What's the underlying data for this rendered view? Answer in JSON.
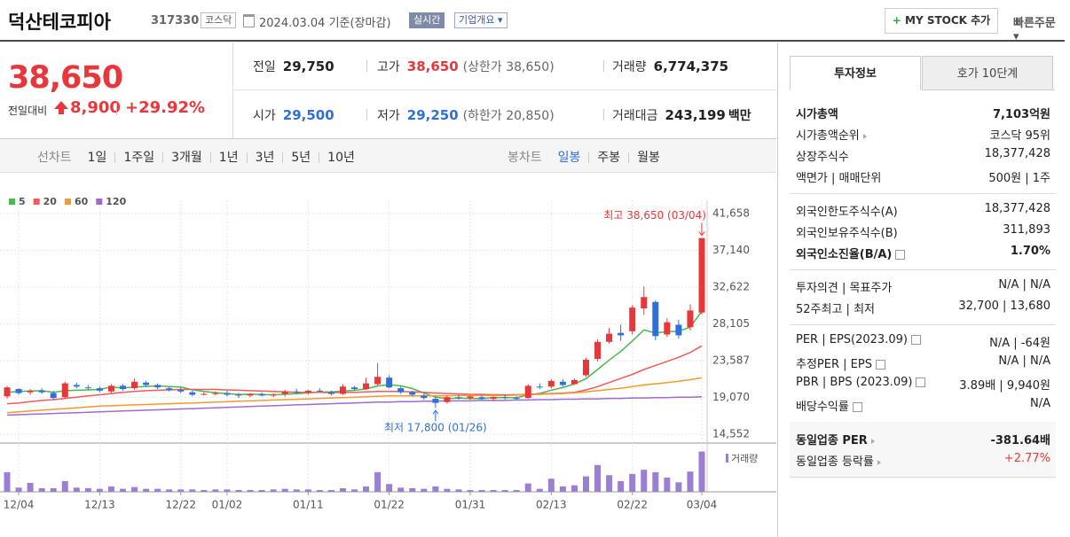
{
  "header": {
    "title": "덕산테코피아",
    "code": "317330",
    "market": "코스닥",
    "date": "2024.03.04",
    "basis": "기준(장마감)",
    "realtime": "실시간",
    "overview": "기업개요",
    "mystock": "MY STOCK 추가",
    "quick_order": "빠른주문"
  },
  "price": {
    "current": "38,650",
    "change_label": "전일대비",
    "change": "8,900",
    "change_rate": "+29.92%"
  },
  "summary": {
    "rows": [
      [
        {
          "label": "전일",
          "value": "29,750"
        },
        {
          "label": "고가",
          "value": "38,650",
          "note": "(상한가 38,650)"
        },
        {
          "label": "거래량",
          "value": "6,774,375"
        }
      ],
      [
        {
          "label": "시가",
          "value": "29,500"
        },
        {
          "label": "저가",
          "value": "29,250",
          "note": "(하한가 20,850)"
        },
        {
          "label": "거래대금",
          "value": "243,199",
          "unit": "백만"
        }
      ]
    ]
  },
  "tabs": {
    "line_label": "선차트",
    "line": [
      "1일",
      "1주일",
      "3개월",
      "1년",
      "3년",
      "5년",
      "10년"
    ],
    "candle_label": "봉차트",
    "candle": [
      "일봉",
      "주봉",
      "월봉"
    ]
  },
  "chart_data": {
    "type": "candlestick",
    "x": [
      null,
      "12/04",
      null,
      null,
      null,
      null,
      null,
      null,
      "12/13",
      null,
      null,
      null,
      null,
      null,
      null,
      "12/22",
      null,
      null,
      null,
      "01/02",
      null,
      null,
      null,
      null,
      null,
      null,
      "01/11",
      null,
      null,
      null,
      null,
      null,
      null,
      "01/22",
      null,
      null,
      null,
      null,
      null,
      null,
      "01/31",
      null,
      null,
      null,
      null,
      null,
      null,
      "02/13",
      null,
      null,
      null,
      null,
      null,
      null,
      "02/22",
      null,
      null,
      null,
      null,
      null,
      "03/04"
    ],
    "open": [
      19200,
      20100,
      19700,
      19900,
      19600,
      19100,
      20600,
      20300,
      20200,
      19800,
      20500,
      20200,
      20900,
      20600,
      20200,
      20000,
      19700,
      19400,
      19500,
      19600,
      19400,
      19300,
      19500,
      19300,
      19500,
      19800,
      19700,
      19900,
      19700,
      19500,
      20300,
      20100,
      20700,
      21500,
      20200,
      19700,
      19300,
      18900,
      18500,
      19100,
      19000,
      19100,
      18900,
      19100,
      19000,
      19000,
      20400,
      20400,
      21000,
      20700,
      21800,
      23800,
      25900,
      27000,
      27200,
      30000,
      30800,
      26800,
      28000,
      27700,
      29500
    ],
    "high": [
      20500,
      20200,
      20100,
      20200,
      19900,
      21000,
      20900,
      20600,
      20400,
      20700,
      20700,
      21400,
      21100,
      20800,
      20400,
      20300,
      19900,
      19700,
      19800,
      19900,
      19600,
      19600,
      19700,
      19600,
      20000,
      20100,
      20000,
      20200,
      19900,
      20700,
      20500,
      21500,
      23300,
      21800,
      20500,
      19900,
      19500,
      19200,
      19300,
      19400,
      19300,
      19300,
      19200,
      19400,
      19200,
      20700,
      20800,
      21300,
      21300,
      21400,
      23900,
      26200,
      27600,
      28000,
      30400,
      32700,
      31000,
      28800,
      28600,
      30500,
      38650
    ],
    "low": [
      18900,
      19400,
      19400,
      19500,
      18800,
      19000,
      20200,
      20000,
      19700,
      19600,
      19900,
      20000,
      20400,
      20100,
      19800,
      19600,
      19200,
      19300,
      19300,
      19200,
      19000,
      19100,
      19200,
      19100,
      19200,
      19500,
      19400,
      19700,
      19300,
      19400,
      19900,
      20000,
      20500,
      20200,
      19500,
      19200,
      18800,
      17800,
      18300,
      18800,
      18800,
      18700,
      18600,
      18800,
      18700,
      18900,
      20100,
      20200,
      20400,
      20600,
      21600,
      23500,
      25700,
      26000,
      26800,
      29200,
      26100,
      26500,
      26300,
      27300,
      29250
    ],
    "close": [
      20300,
      19600,
      19900,
      19700,
      19000,
      20800,
      20400,
      20200,
      19900,
      20500,
      20100,
      21000,
      20600,
      20300,
      20000,
      19800,
      19400,
      19500,
      19600,
      19400,
      19300,
      19500,
      19300,
      19400,
      19800,
      19700,
      19900,
      19800,
      19500,
      20400,
      20100,
      20800,
      21600,
      20300,
      19700,
      19400,
      19000,
      18400,
      19100,
      19000,
      19200,
      18900,
      19100,
      19000,
      18900,
      20500,
      20300,
      21100,
      20600,
      21200,
      23700,
      25900,
      26900,
      26700,
      30100,
      31400,
      26600,
      28300,
      26700,
      29750,
      38650
    ],
    "volume": [
      3300000,
      700000,
      1500000,
      600000,
      600000,
      1800000,
      700000,
      600000,
      500000,
      900000,
      500000,
      800000,
      500000,
      500000,
      400000,
      400000,
      400000,
      300000,
      400000,
      400000,
      300000,
      300000,
      300000,
      400000,
      500000,
      400000,
      400000,
      300000,
      300000,
      600000,
      400000,
      900000,
      3300000,
      1300000,
      700000,
      600000,
      500000,
      900000,
      500000,
      400000,
      300000,
      300000,
      300000,
      300000,
      300000,
      1400000,
      500000,
      2200000,
      900000,
      1100000,
      2600000,
      4500000,
      2800000,
      1800000,
      3000000,
      3700000,
      3300000,
      2400000,
      1600000,
      3400000,
      6774375
    ],
    "ma": [
      {
        "name": "5",
        "color": "#4cb84c",
        "values": [
          19700,
          19800,
          19850,
          19900,
          19700,
          19900,
          19950,
          20000,
          20050,
          20350,
          20220,
          20340,
          20420,
          20500,
          20400,
          20340,
          20020,
          19800,
          19660,
          19540,
          19440,
          19460,
          19420,
          19380,
          19460,
          19540,
          19620,
          19720,
          19740,
          19860,
          19940,
          20120,
          20480,
          20640,
          20500,
          20160,
          19600,
          19100,
          18920,
          18980,
          18940,
          18920,
          19060,
          19040,
          19040,
          19380,
          19560,
          19960,
          20280,
          20740,
          21380,
          22500,
          23660,
          24720,
          26000,
          27360,
          27000,
          27160,
          27200,
          27710,
          29650
        ]
      },
      {
        "name": "20",
        "color": "#f05a5a",
        "values": [
          18300,
          18400,
          18550,
          18700,
          18800,
          18950,
          19100,
          19250,
          19400,
          19550,
          19700,
          19800,
          19900,
          19950,
          20000,
          20050,
          20050,
          20050,
          20050,
          20000,
          19950,
          19900,
          19850,
          19800,
          19750,
          19700,
          19700,
          19700,
          19650,
          19700,
          19700,
          19750,
          19800,
          19800,
          19800,
          19750,
          19700,
          19600,
          19550,
          19500,
          19450,
          19450,
          19400,
          19400,
          19400,
          19450,
          19500,
          19550,
          19600,
          19700,
          20000,
          20400,
          20900,
          21400,
          21900,
          22500,
          23000,
          23500,
          24000,
          24600,
          25400
        ]
      },
      {
        "name": "60",
        "color": "#f39a2e",
        "values": [
          17200,
          17300,
          17400,
          17500,
          17600,
          17700,
          17800,
          17900,
          18000,
          18050,
          18100,
          18150,
          18200,
          18250,
          18300,
          18350,
          18400,
          18450,
          18500,
          18550,
          18600,
          18650,
          18700,
          18750,
          18800,
          18850,
          18900,
          18950,
          19000,
          19050,
          19100,
          19150,
          19200,
          19250,
          19250,
          19250,
          19250,
          19250,
          19250,
          19300,
          19300,
          19300,
          19300,
          19300,
          19350,
          19400,
          19450,
          19500,
          19550,
          19650,
          19750,
          19900,
          20050,
          20200,
          20400,
          20600,
          20750,
          20900,
          21050,
          21250,
          21500
        ]
      },
      {
        "name": "120",
        "color": "#a06bd0",
        "values": [
          16900,
          16950,
          17000,
          17050,
          17100,
          17150,
          17200,
          17250,
          17300,
          17350,
          17400,
          17450,
          17500,
          17550,
          17600,
          17650,
          17700,
          17750,
          17800,
          17850,
          17900,
          17950,
          18000,
          18050,
          18100,
          18150,
          18200,
          18250,
          18300,
          18350,
          18400,
          18450,
          18500,
          18500,
          18550,
          18550,
          18600,
          18600,
          18650,
          18650,
          18650,
          18700,
          18700,
          18700,
          18750,
          18750,
          18800,
          18800,
          18850,
          18850,
          18900,
          18900,
          18950,
          18950,
          19000,
          19000,
          19050,
          19050,
          19100,
          19100,
          19150
        ]
      }
    ],
    "up_color": "#e8373a",
    "down_color": "#2f6fdc",
    "volume_color": "#9b7fd2",
    "ylim": [
      14552,
      41658
    ],
    "yticks": [
      {
        "value": 41658,
        "label": "41,658"
      },
      {
        "value": 37140,
        "label": "37,140"
      },
      {
        "value": 32622,
        "label": "32,622"
      },
      {
        "value": 28105,
        "label": "28,105"
      },
      {
        "value": 23587,
        "label": "23,587"
      },
      {
        "value": 19070,
        "label": "19,070"
      },
      {
        "value": 14552,
        "label": "14,552"
      }
    ],
    "volume_ylim": [
      0,
      7000000
    ],
    "high_label": "최고 38,650 (03/04)",
    "low_label": "최저 17,800 (01/26)",
    "volume_label": "거래량"
  },
  "invest": {
    "tabs": [
      "투자정보",
      "호가 10단계"
    ],
    "groups": [
      [
        {
          "label": "시가총액",
          "value": "7,103억원"
        },
        {
          "label": "시가총액순위",
          "value": "코스닥 95위"
        },
        {
          "label": "상장주식수",
          "value": "18,377,428"
        },
        {
          "label": "액면가 | 매매단위",
          "value": "500원 | 1주"
        }
      ],
      [
        {
          "label": "외국인한도주식수(A)",
          "value": "18,377,428"
        },
        {
          "label": "외국인보유주식수(B)",
          "value": "311,893"
        },
        {
          "label": "외국인소진율(B/A)",
          "value": "1.70%"
        }
      ],
      [
        {
          "label": "투자의견 | 목표주가",
          "value": "N/A | N/A"
        },
        {
          "label": "52주최고 | 최저",
          "value": "32,700 | 13,680"
        }
      ],
      [
        {
          "label": "PER | EPS(2023.09)",
          "value": "N/A | -64원"
        },
        {
          "label": "추정PER | EPS",
          "value": "N/A | N/A"
        },
        {
          "label": "PBR | BPS (2023.09)",
          "value": "3.89배 | 9,940원"
        },
        {
          "label": "배당수익률",
          "value": "N/A"
        }
      ],
      [
        {
          "label": "동일업종 PER",
          "value": "-381.64배"
        },
        {
          "label": "동일업종 등락률",
          "value": "+2.77%"
        }
      ]
    ]
  }
}
